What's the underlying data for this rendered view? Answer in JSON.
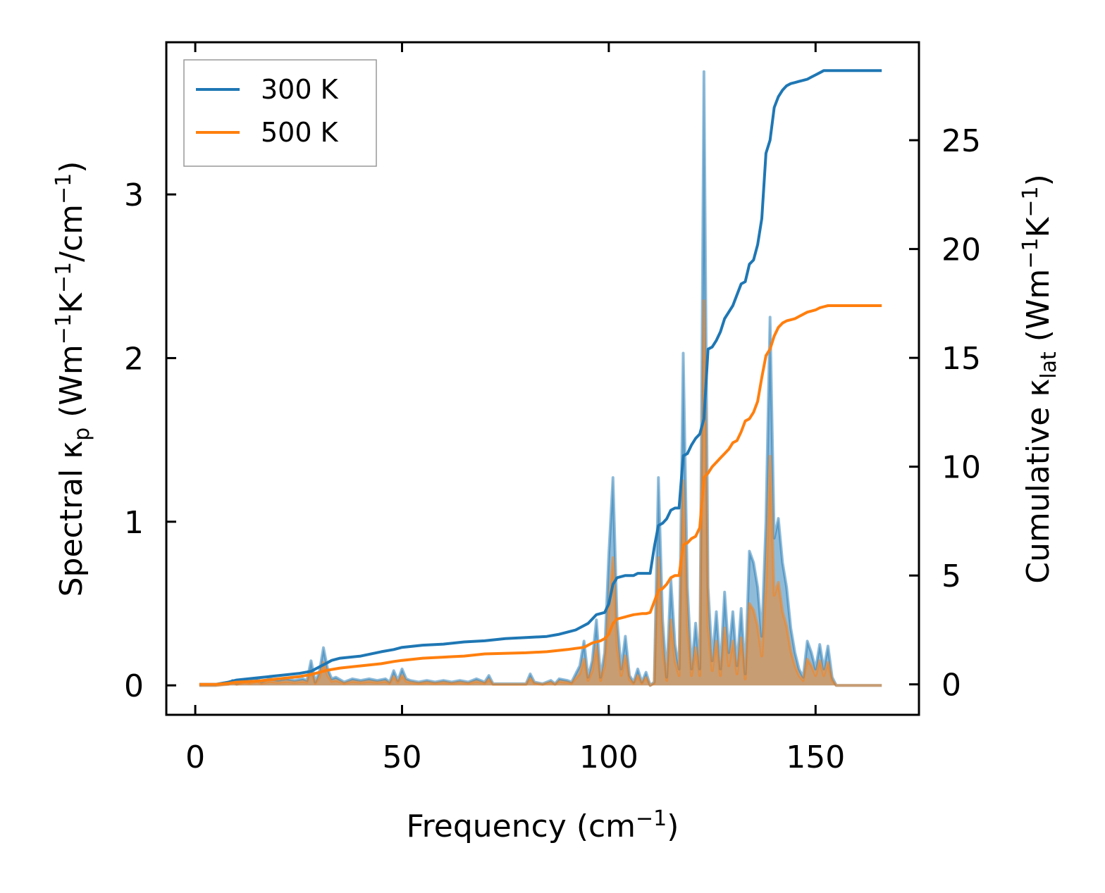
{
  "chart_data": {
    "type": "line",
    "title": "",
    "xlabel": {
      "main": "Frequency (cm",
      "sup": "−1",
      "tail": ")"
    },
    "ylabel_left": {
      "parts": [
        {
          "t": "Spectral κ"
        },
        {
          "t": "p",
          "shift": "sub"
        },
        {
          "t": " (Wm"
        },
        {
          "t": "−1",
          "shift": "super"
        },
        {
          "t": "K"
        },
        {
          "t": "−1",
          "shift": "super"
        },
        {
          "t": "/cm"
        },
        {
          "t": "−1",
          "shift": "super"
        },
        {
          "t": ")"
        }
      ]
    },
    "ylabel_right": {
      "parts": [
        {
          "t": "Cumulative κ"
        },
        {
          "t": "lat",
          "shift": "sub"
        },
        {
          "t": " (Wm"
        },
        {
          "t": "−1",
          "shift": "super"
        },
        {
          "t": "K"
        },
        {
          "t": "−1",
          "shift": "super"
        },
        {
          "t": ")"
        }
      ]
    },
    "xlim": [
      -7,
      175
    ],
    "ylim_left": [
      -0.18,
      3.93
    ],
    "ylim_right": [
      -1.4,
      29.5
    ],
    "xticks": [
      0,
      50,
      100,
      150
    ],
    "yticks_left": [
      0,
      1,
      2,
      3
    ],
    "yticks_right": [
      0,
      5,
      10,
      15,
      20,
      25
    ],
    "grid": false,
    "legend_position": "top-left",
    "colors": {
      "s300": "#1f77b4",
      "s500": "#ff7f0e",
      "fill300": "#1f77b4",
      "fill500": "#ff7f0e"
    },
    "spectral_x": [
      1,
      5,
      8,
      9,
      10,
      12,
      13,
      15,
      16,
      17,
      18,
      20,
      22,
      24,
      26,
      27,
      28,
      29,
      30,
      31,
      32,
      33,
      34,
      36,
      38,
      40,
      42,
      44,
      46,
      47,
      48,
      49,
      50,
      51,
      52,
      54,
      56,
      58,
      60,
      62,
      64,
      66,
      68,
      70,
      71,
      72,
      80,
      81,
      82,
      84,
      86,
      87,
      88,
      90,
      91,
      92,
      93,
      94,
      95,
      96,
      97,
      98,
      99,
      100,
      101,
      102,
      103,
      104,
      105,
      106,
      107,
      108,
      109,
      110,
      111,
      112,
      113,
      114,
      115,
      116,
      117,
      118,
      119,
      120,
      121,
      122,
      123,
      124,
      125,
      126,
      127,
      128,
      129,
      130,
      131,
      132,
      133,
      134,
      135,
      136,
      137,
      138,
      139,
      140,
      141,
      142,
      143,
      144,
      145,
      146,
      147,
      148,
      149,
      150,
      151,
      152,
      153,
      154,
      155,
      160,
      166
    ],
    "series": [
      {
        "name": "300 K",
        "spectral": [
          0,
          0,
          0.01,
          0.03,
          0.01,
          0.03,
          0.02,
          0.04,
          0.02,
          0.03,
          0.04,
          0.03,
          0.04,
          0.03,
          0.04,
          0.03,
          0.15,
          0.02,
          0.08,
          0.23,
          0.1,
          0.04,
          0.05,
          0.02,
          0.04,
          0.03,
          0.04,
          0.03,
          0.04,
          0.02,
          0.09,
          0.03,
          0.1,
          0.04,
          0.03,
          0.02,
          0.03,
          0.02,
          0.03,
          0.02,
          0.03,
          0.02,
          0.04,
          0.02,
          0.06,
          0.01,
          0.01,
          0.07,
          0.02,
          0.01,
          0.03,
          0.01,
          0.04,
          0.03,
          0.02,
          0.07,
          0.12,
          0.27,
          0.05,
          0.15,
          0.4,
          0.05,
          0.2,
          0.8,
          1.27,
          0.4,
          0.1,
          0.3,
          0.06,
          0.02,
          0.1,
          0.02,
          0.08,
          0,
          0.02,
          1.27,
          0.4,
          0.05,
          0.65,
          0.25,
          0.1,
          2.03,
          0.6,
          0.1,
          0.38,
          0.1,
          3.75,
          0.6,
          0.15,
          0.45,
          0.1,
          0.57,
          0.2,
          0.45,
          0.12,
          0.47,
          0.07,
          0.82,
          0.75,
          0.6,
          0.3,
          1.0,
          2.25,
          0.9,
          1.02,
          0.75,
          0.6,
          0.35,
          0.2,
          0.1,
          0.05,
          0.27,
          0.2,
          0.1,
          0.25,
          0.1,
          0.24,
          0.05,
          0,
          0,
          0
        ],
        "cumulative_x": [
          1,
          5,
          8,
          10,
          15,
          20,
          25,
          28,
          30,
          32,
          33,
          35,
          40,
          45,
          48,
          50,
          55,
          60,
          65,
          70,
          75,
          80,
          85,
          88,
          90,
          92,
          93,
          95,
          97,
          99,
          100,
          101,
          102,
          104,
          106,
          107,
          108,
          109,
          110,
          111,
          112,
          113,
          114,
          115,
          116,
          117,
          118,
          119,
          120,
          121,
          122,
          123,
          124,
          125,
          126,
          127,
          128,
          129,
          130,
          131,
          132,
          133,
          134,
          135,
          136,
          137,
          138,
          139,
          140,
          141,
          142,
          143,
          144,
          145,
          146,
          147,
          148,
          149,
          150,
          151,
          152,
          153,
          155,
          160,
          166
        ],
        "cumulative": [
          0,
          0,
          0.1,
          0.2,
          0.3,
          0.4,
          0.5,
          0.6,
          0.8,
          1.0,
          1.1,
          1.2,
          1.3,
          1.5,
          1.6,
          1.7,
          1.8,
          1.85,
          1.95,
          2.0,
          2.1,
          2.15,
          2.2,
          2.3,
          2.4,
          2.5,
          2.6,
          2.8,
          3.2,
          3.3,
          3.7,
          4.6,
          4.9,
          5.0,
          5.0,
          5.1,
          5.1,
          5.1,
          5.1,
          6.3,
          7.3,
          7.4,
          7.6,
          8.0,
          8.1,
          8.1,
          10.5,
          10.6,
          11.0,
          11.3,
          11.5,
          12.2,
          15.4,
          15.5,
          15.8,
          16.2,
          16.8,
          17.1,
          17.4,
          17.9,
          18.4,
          18.5,
          19.3,
          19.5,
          20.2,
          21.4,
          24.4,
          25.0,
          26.5,
          27.0,
          27.3,
          27.5,
          27.6,
          27.65,
          27.7,
          27.75,
          27.8,
          27.9,
          28.0,
          28.1,
          28.2,
          28.2,
          28.2,
          28.2,
          28.2
        ]
      },
      {
        "name": "500 K",
        "spectral": [
          0,
          0,
          0.006,
          0.018,
          0.006,
          0.018,
          0.012,
          0.024,
          0.012,
          0.018,
          0.024,
          0.018,
          0.024,
          0.018,
          0.024,
          0.018,
          0.09,
          0.012,
          0.048,
          0.14,
          0.06,
          0.024,
          0.03,
          0.012,
          0.024,
          0.018,
          0.024,
          0.018,
          0.024,
          0.012,
          0.054,
          0.018,
          0.06,
          0.024,
          0.018,
          0.012,
          0.018,
          0.012,
          0.018,
          0.012,
          0.018,
          0.012,
          0.024,
          0.012,
          0.036,
          0.006,
          0.006,
          0.042,
          0.012,
          0.006,
          0.018,
          0.006,
          0.024,
          0.018,
          0.012,
          0.042,
          0.072,
          0.16,
          0.03,
          0.09,
          0.24,
          0.03,
          0.12,
          0.48,
          0.78,
          0.24,
          0.06,
          0.18,
          0.036,
          0.012,
          0.06,
          0.012,
          0.048,
          0,
          0.012,
          0.78,
          0.24,
          0.03,
          0.4,
          0.15,
          0.06,
          1.25,
          0.36,
          0.06,
          0.23,
          0.06,
          2.35,
          0.36,
          0.09,
          0.27,
          0.06,
          0.35,
          0.12,
          0.27,
          0.07,
          0.29,
          0.04,
          0.5,
          0.46,
          0.36,
          0.18,
          0.6,
          1.4,
          0.55,
          0.63,
          0.45,
          0.36,
          0.21,
          0.12,
          0.06,
          0.03,
          0.16,
          0.12,
          0.06,
          0.15,
          0.06,
          0.14,
          0.03,
          0,
          0,
          0
        ],
        "cumulative_x": [
          1,
          5,
          8,
          10,
          15,
          20,
          25,
          28,
          30,
          32,
          35,
          40,
          45,
          48,
          50,
          55,
          60,
          65,
          70,
          80,
          85,
          90,
          92,
          94,
          96,
          98,
          99,
          100,
          101,
          102,
          104,
          106,
          108,
          109,
          110,
          111,
          112,
          113,
          114,
          115,
          116,
          117,
          118,
          119,
          120,
          121,
          122,
          123,
          124,
          125,
          126,
          127,
          128,
          129,
          130,
          131,
          132,
          133,
          134,
          135,
          136,
          137,
          138,
          139,
          140,
          141,
          142,
          143,
          144,
          145,
          146,
          147,
          148,
          149,
          150,
          151,
          152,
          153,
          155,
          160,
          166
        ],
        "cumulative": [
          0,
          0,
          0.05,
          0.1,
          0.15,
          0.25,
          0.35,
          0.45,
          0.55,
          0.65,
          0.75,
          0.85,
          0.95,
          1.05,
          1.1,
          1.2,
          1.25,
          1.3,
          1.4,
          1.45,
          1.5,
          1.6,
          1.65,
          1.7,
          1.9,
          2.0,
          2.1,
          2.3,
          2.8,
          3.0,
          3.1,
          3.2,
          3.25,
          3.25,
          3.3,
          3.8,
          4.3,
          4.4,
          4.6,
          4.9,
          5.0,
          5.0,
          6.4,
          6.5,
          6.7,
          6.8,
          7.2,
          9.5,
          9.7,
          10.0,
          10.2,
          10.4,
          10.6,
          10.8,
          11.1,
          11.2,
          11.6,
          12.1,
          12.2,
          12.5,
          13.0,
          14.1,
          15.1,
          15.4,
          16.0,
          16.4,
          16.6,
          16.7,
          16.75,
          16.8,
          16.9,
          17.0,
          17.1,
          17.15,
          17.2,
          17.3,
          17.35,
          17.4,
          17.4,
          17.4,
          17.4
        ]
      }
    ]
  }
}
